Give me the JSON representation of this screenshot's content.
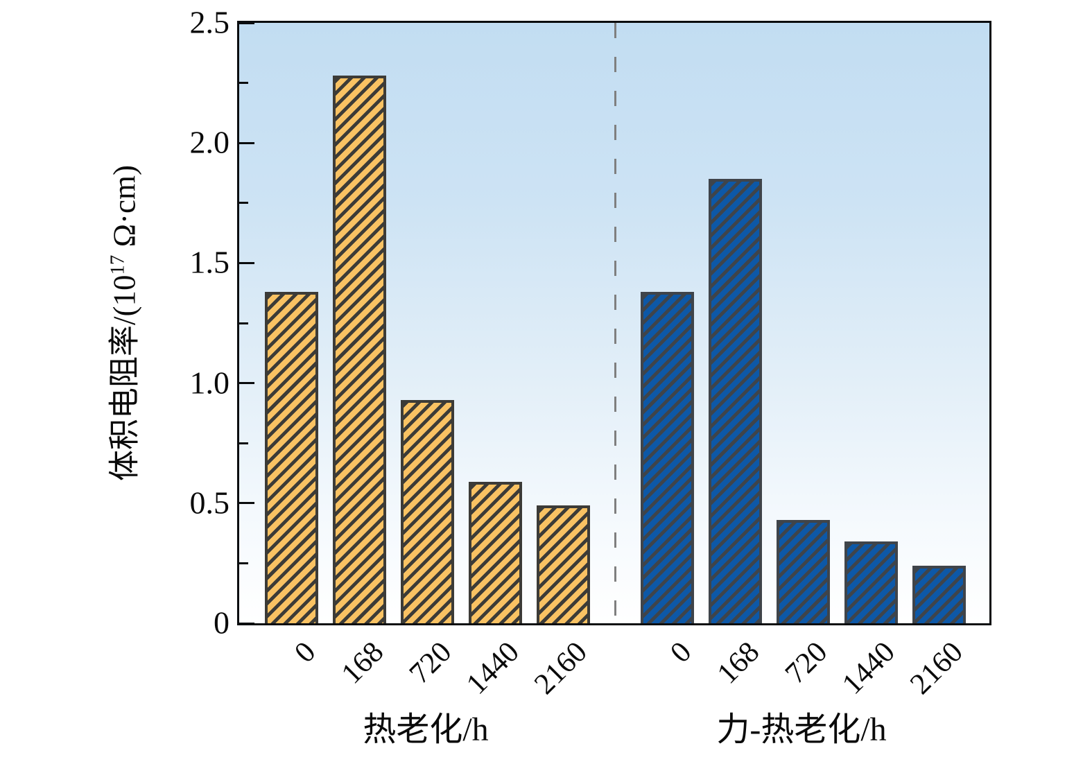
{
  "chart_data": {
    "type": "bar",
    "title": "",
    "ylabel_prefix": "体积电阻率/(10",
    "ylabel_exponent": "17",
    "ylabel_suffix": " Ω·cm)",
    "ylim": [
      0,
      2.5
    ],
    "y_major_ticks": [
      0,
      0.5,
      1.0,
      1.5,
      2.0,
      2.5
    ],
    "y_tick_labels": [
      "0",
      "0.5",
      "1.0",
      "1.5",
      "2.0",
      "2.5"
    ],
    "y_minor_ticks": [
      0.25,
      0.75,
      1.25,
      1.75,
      2.25
    ],
    "categories": [
      "0",
      "168",
      "720",
      "1440",
      "2160"
    ],
    "groups": [
      {
        "key": "thermal-aging",
        "name": "热老化/h",
        "fill": "#f9c263",
        "hatch": "#3c3b37",
        "values": [
          1.38,
          2.28,
          0.93,
          0.59,
          0.49
        ]
      },
      {
        "key": "force-thermal-aging",
        "name": "力-热老化/h",
        "fill": "#0d58a7",
        "hatch": "#3f444a",
        "values": [
          1.38,
          1.85,
          0.43,
          0.34,
          0.24
        ]
      }
    ],
    "separator_style": "dashed",
    "legend": "none",
    "grid": "off"
  },
  "colors": {
    "frame": "#0b0d0f",
    "tick": "#0b0d0f",
    "text": "#0a0a0a",
    "separator": "#7f7f7f",
    "bg_top": "#c2ddf2",
    "bg_bottom": "#ffffff"
  }
}
